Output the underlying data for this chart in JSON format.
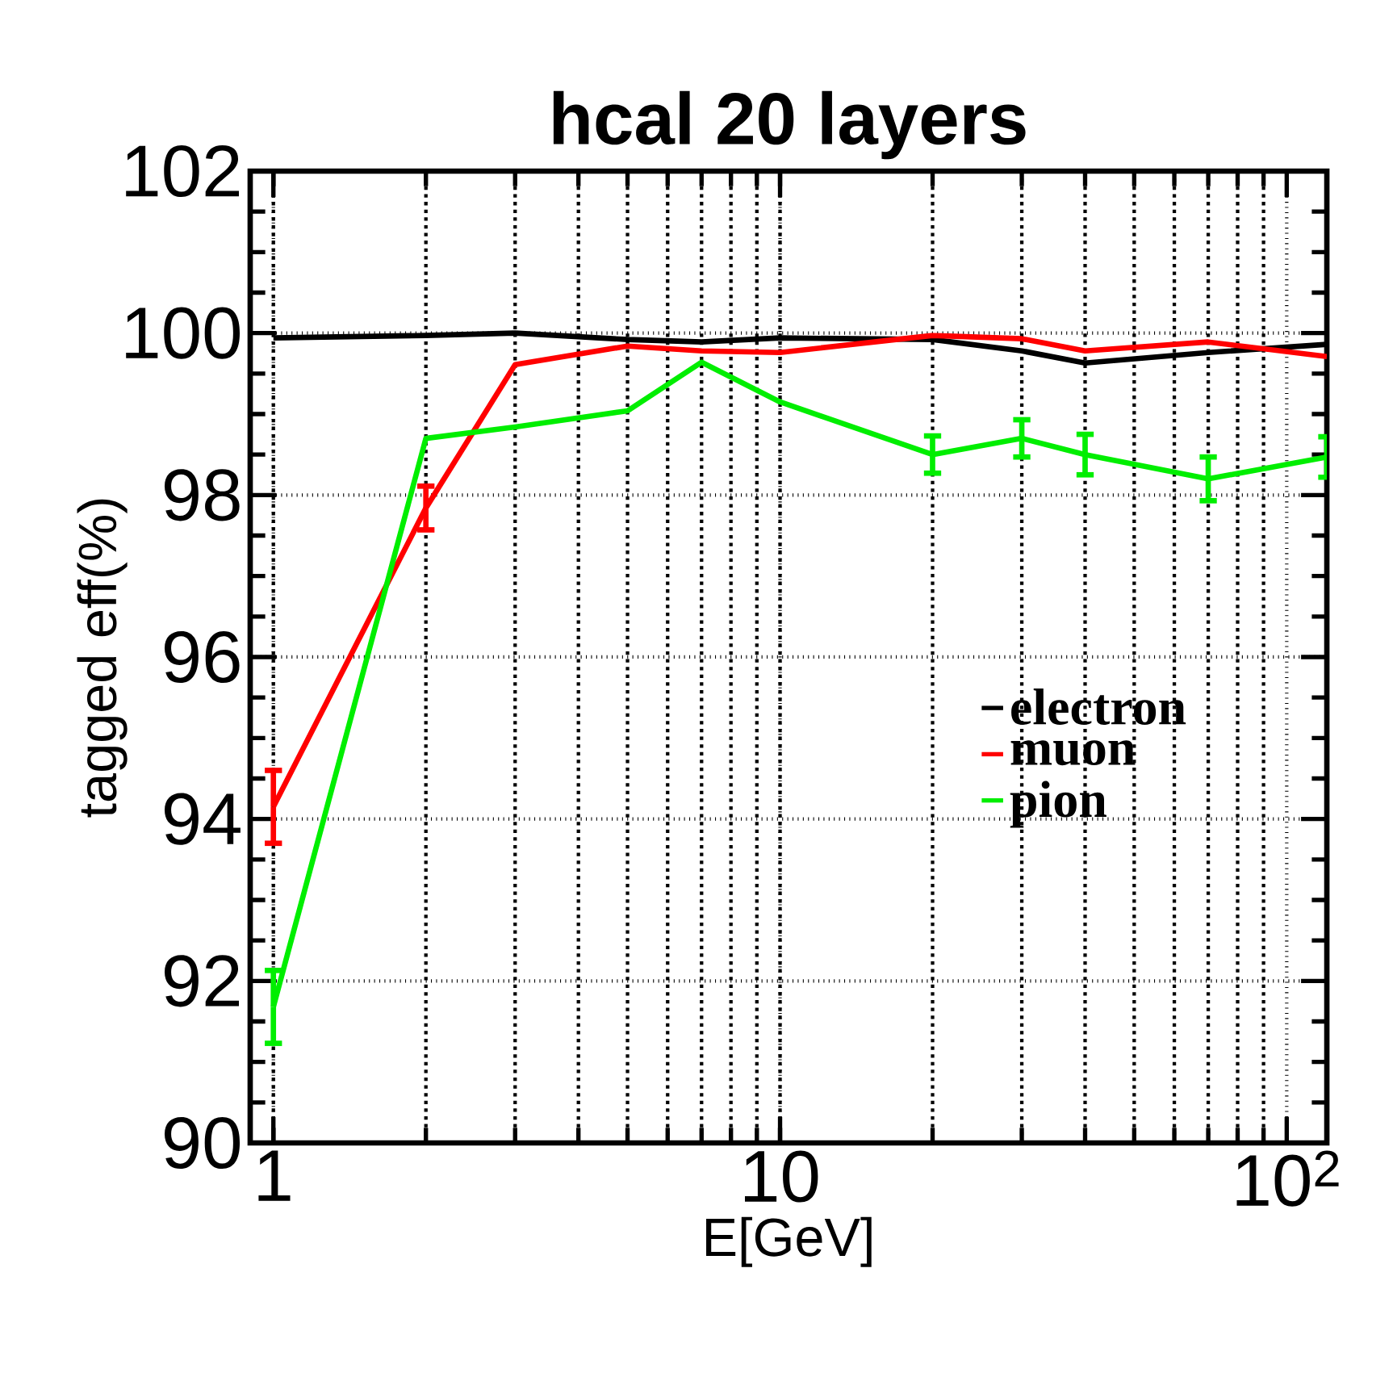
{
  "chart_data": {
    "type": "line",
    "title": "hcal 20 layers",
    "xlabel": "E[GeV]",
    "ylabel": "tagged eff(%)",
    "log": "x",
    "xlim": [
      0.9,
      120
    ],
    "ylim": [
      90,
      102
    ],
    "xticks": [
      1,
      10,
      {
        "value": 100,
        "label": "10$^{2}$"
      }
    ],
    "yticks": [
      90,
      92,
      94,
      96,
      98,
      100,
      102
    ],
    "grid": true,
    "legend": "right",
    "marker": "none",
    "line_style": "solid",
    "x": [
      1,
      2,
      3,
      5,
      7,
      10,
      20,
      30,
      40,
      70,
      120
    ],
    "series": [
      {
        "name": "electron",
        "color": "#000000",
        "values": [
          99.94,
          99.97,
          100.0,
          99.92,
          99.89,
          99.94,
          99.92,
          99.78,
          99.63,
          99.76,
          99.86
        ]
      },
      {
        "name": "muon",
        "color": "#ff0000",
        "values": [
          94.15,
          97.84,
          99.61,
          99.84,
          99.78,
          99.76,
          99.97,
          99.93,
          99.78,
          99.89,
          99.71
        ],
        "errors": [
          0.45,
          0.27,
          null,
          null,
          null,
          null,
          null,
          null,
          null,
          null,
          null
        ]
      },
      {
        "name": "pion",
        "color": "#00ee00",
        "values": [
          91.68,
          98.7,
          98.84,
          99.04,
          99.64,
          99.15,
          98.5,
          98.7,
          98.5,
          98.2,
          98.47
        ],
        "errors": [
          0.45,
          null,
          null,
          null,
          null,
          null,
          0.23,
          0.23,
          0.25,
          0.27,
          0.25
        ]
      }
    ]
  }
}
